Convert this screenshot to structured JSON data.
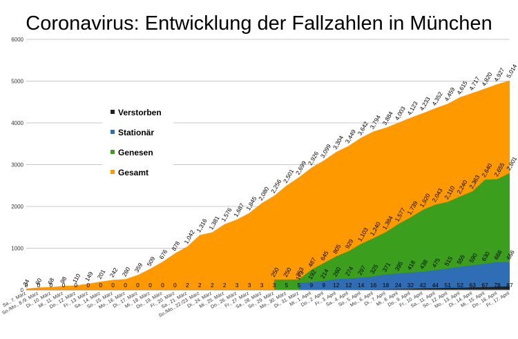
{
  "chart_data": {
    "type": "area",
    "title": "Coronavirus: Entwicklung der Fallzahlen in München",
    "xlabel": "",
    "ylabel": "",
    "ylim": [
      0,
      6000
    ],
    "yticks": [
      0,
      1000,
      2000,
      3000,
      4000,
      5000,
      6000
    ],
    "grid": true,
    "legend_position": "left-center",
    "categories": [
      "Sa., 7. März",
      "So./Mo., 8./9. März",
      "Di., 10. März",
      "Mi., 11. März",
      "Do., 12. März",
      "Fr., 13. März",
      "Sa., 14. März",
      "So., 15. März",
      "Mo., 16. März",
      "Di., 17. März",
      "Mi., 18. März",
      "Do., 19. März",
      "Fr., 20. März",
      "Sa., 21. März",
      "So./Mo., 22./23. März",
      "Di., 24. März",
      "Mi., 25. März",
      "Do., 26. März",
      "Fr., 27. März",
      "Sa., 28. März",
      "So., 29. März",
      "Mo., 30. März",
      "Di., 31. März",
      "Mi., 1. April",
      "Do., 2. April",
      "Fr., 3. April",
      "Sa., 4. April",
      "So., 5. April",
      "Mo., 6. April",
      "Di., 7. April",
      "Mi., 8. April",
      "Do., 9. April",
      "Fr., 10. April",
      "Sa., 11. April",
      "So., 12. April",
      "Mo., 13. April",
      "Di., 14. April",
      "Mi., 15. April",
      "Do., 16. April",
      "Fr., 17. April"
    ],
    "series": [
      {
        "name": "Gesamt",
        "color": "#ff9900",
        "values": [
          34,
          60,
          68,
          98,
          110,
          149,
          201,
          242,
          260,
          359,
          509,
          676,
          878,
          1042,
          1316,
          1381,
          1576,
          1687,
          1845,
          2080,
          2256,
          2501,
          2699,
          2926,
          3099,
          3304,
          3449,
          3642,
          3794,
          3884,
          4003,
          4123,
          4233,
          4352,
          4459,
          4615,
          4717,
          4820,
          4927,
          5014
        ]
      },
      {
        "name": "Genesen",
        "color": "#3c9e1d",
        "values": [
          null,
          null,
          null,
          null,
          null,
          null,
          null,
          null,
          null,
          null,
          null,
          null,
          null,
          null,
          null,
          null,
          null,
          null,
          null,
          null,
          250,
          250,
          253,
          487,
          645,
          805,
          929,
          1103,
          1240,
          1384,
          1577,
          1739,
          1920,
          2043,
          2110,
          2240,
          2363,
          2640,
          2655,
          2801
        ]
      },
      {
        "name": "Stationär",
        "color": "#2f6eb5",
        "values": [
          null,
          null,
          null,
          null,
          null,
          null,
          null,
          null,
          null,
          null,
          null,
          null,
          null,
          null,
          null,
          null,
          null,
          null,
          null,
          null,
          null,
          null,
          173,
          192,
          214,
          260,
          274,
          297,
          325,
          371,
          395,
          418,
          438,
          475,
          515,
          555,
          590,
          630,
          666,
          666
        ]
      },
      {
        "name": "Verstorben",
        "color": "#222222",
        "values": [
          0,
          0,
          0,
          0,
          0,
          0,
          0,
          0,
          0,
          0,
          0,
          0,
          0,
          2,
          2,
          2,
          2,
          3,
          3,
          3,
          3,
          5,
          5,
          9,
          9,
          12,
          12,
          14,
          16,
          18,
          24,
          32,
          42,
          44,
          51,
          52,
          63,
          67,
          78,
          87
        ]
      }
    ]
  }
}
